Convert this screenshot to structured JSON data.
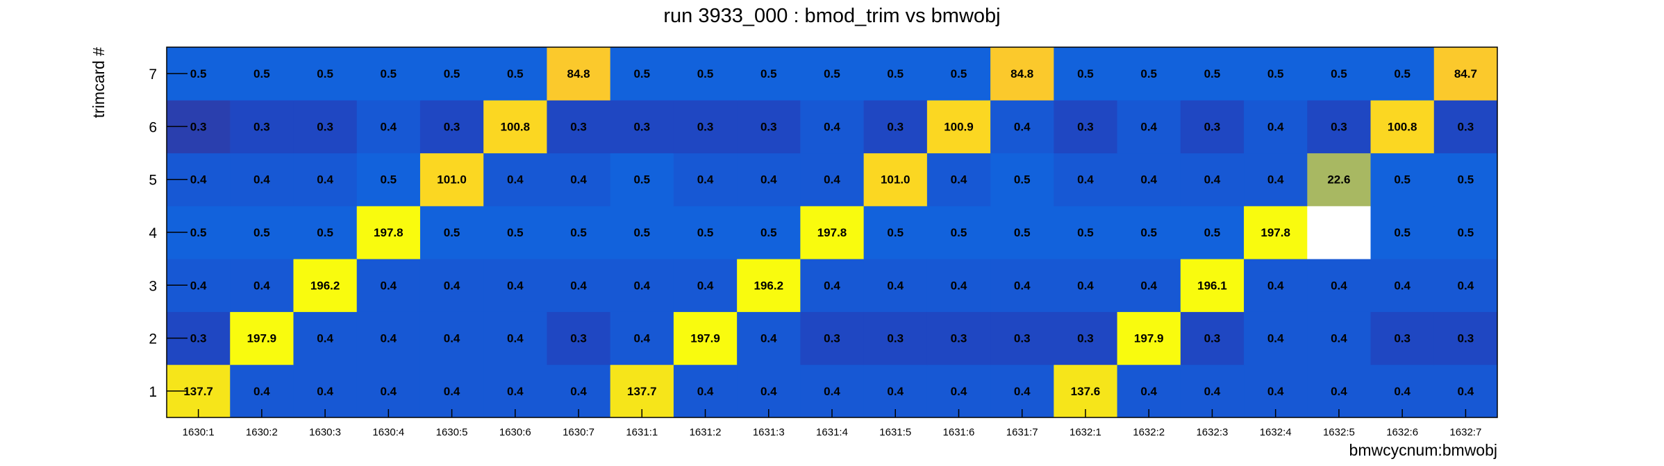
{
  "chart_data": {
    "type": "heatmap",
    "title": "run 3933_000 : bmod_trim vs bmwobj",
    "xlabel": "bmwcycnum:bmwobj",
    "ylabel": "trimcard #",
    "x_categories": [
      "1630:1",
      "1630:2",
      "1630:3",
      "1630:4",
      "1630:5",
      "1630:6",
      "1630:7",
      "1631:1",
      "1631:2",
      "1631:3",
      "1631:4",
      "1631:5",
      "1631:6",
      "1631:7",
      "1632:1",
      "1632:2",
      "1632:3",
      "1632:4",
      "1632:5",
      "1632:6",
      "1632:7"
    ],
    "y_categories": [
      "1",
      "2",
      "3",
      "4",
      "5",
      "6",
      "7"
    ],
    "values": [
      [
        137.7,
        0.4,
        0.4,
        0.4,
        0.4,
        0.4,
        0.4,
        137.7,
        0.4,
        0.4,
        0.4,
        0.4,
        0.4,
        0.4,
        137.6,
        0.4,
        0.4,
        0.4,
        0.4,
        0.4,
        0.4
      ],
      [
        0.3,
        197.9,
        0.4,
        0.4,
        0.4,
        0.4,
        0.3,
        0.4,
        197.9,
        0.4,
        0.3,
        0.3,
        0.3,
        0.3,
        0.3,
        197.9,
        0.3,
        0.4,
        0.4,
        0.3,
        0.3
      ],
      [
        0.4,
        0.4,
        196.2,
        0.4,
        0.4,
        0.4,
        0.4,
        0.4,
        0.4,
        196.2,
        0.4,
        0.4,
        0.4,
        0.4,
        0.4,
        0.4,
        196.1,
        0.4,
        0.4,
        0.4,
        0.4
      ],
      [
        0.5,
        0.5,
        0.5,
        197.8,
        0.5,
        0.5,
        0.5,
        0.5,
        0.5,
        0.5,
        197.8,
        0.5,
        0.5,
        0.5,
        0.5,
        0.5,
        0.5,
        197.8,
        null,
        0.5,
        0.5
      ],
      [
        0.4,
        0.4,
        0.4,
        0.5,
        101.0,
        0.4,
        0.4,
        0.5,
        0.4,
        0.4,
        0.4,
        101.0,
        0.4,
        0.5,
        0.4,
        0.4,
        0.4,
        0.4,
        22.6,
        0.5,
        0.5
      ],
      [
        0.3,
        0.3,
        0.3,
        0.4,
        0.3,
        100.8,
        0.3,
        0.3,
        0.3,
        0.3,
        0.4,
        0.3,
        100.9,
        0.4,
        0.3,
        0.4,
        0.3,
        0.4,
        0.3,
        100.8,
        0.3
      ],
      [
        0.5,
        0.5,
        0.5,
        0.5,
        0.5,
        0.5,
        84.8,
        0.5,
        0.5,
        0.5,
        0.5,
        0.5,
        0.5,
        84.8,
        0.5,
        0.5,
        0.5,
        0.5,
        0.5,
        0.5,
        84.7
      ]
    ],
    "color_map": {
      "0.3": "#1f47c2",
      "0.4": "#1758d4",
      "0.5": "#1262dc",
      "22.6": "#a8b862",
      "84.8": "#fbc92c",
      "84.7": "#fbc92c",
      "100.8": "#fbd722",
      "100.9": "#fbd722",
      "101.0": "#fbd722",
      "137.7": "#f6e51a",
      "137.6": "#f6e51a",
      "196.2": "#f9fb0e",
      "196.1": "#f9fb0e",
      "197.8": "#f9fb0e",
      "197.9": "#f9fb0e"
    },
    "darker_cell_color": "#2a3fae",
    "darker_cell": [
      5,
      0
    ],
    "grid": false,
    "colorbar": false
  }
}
